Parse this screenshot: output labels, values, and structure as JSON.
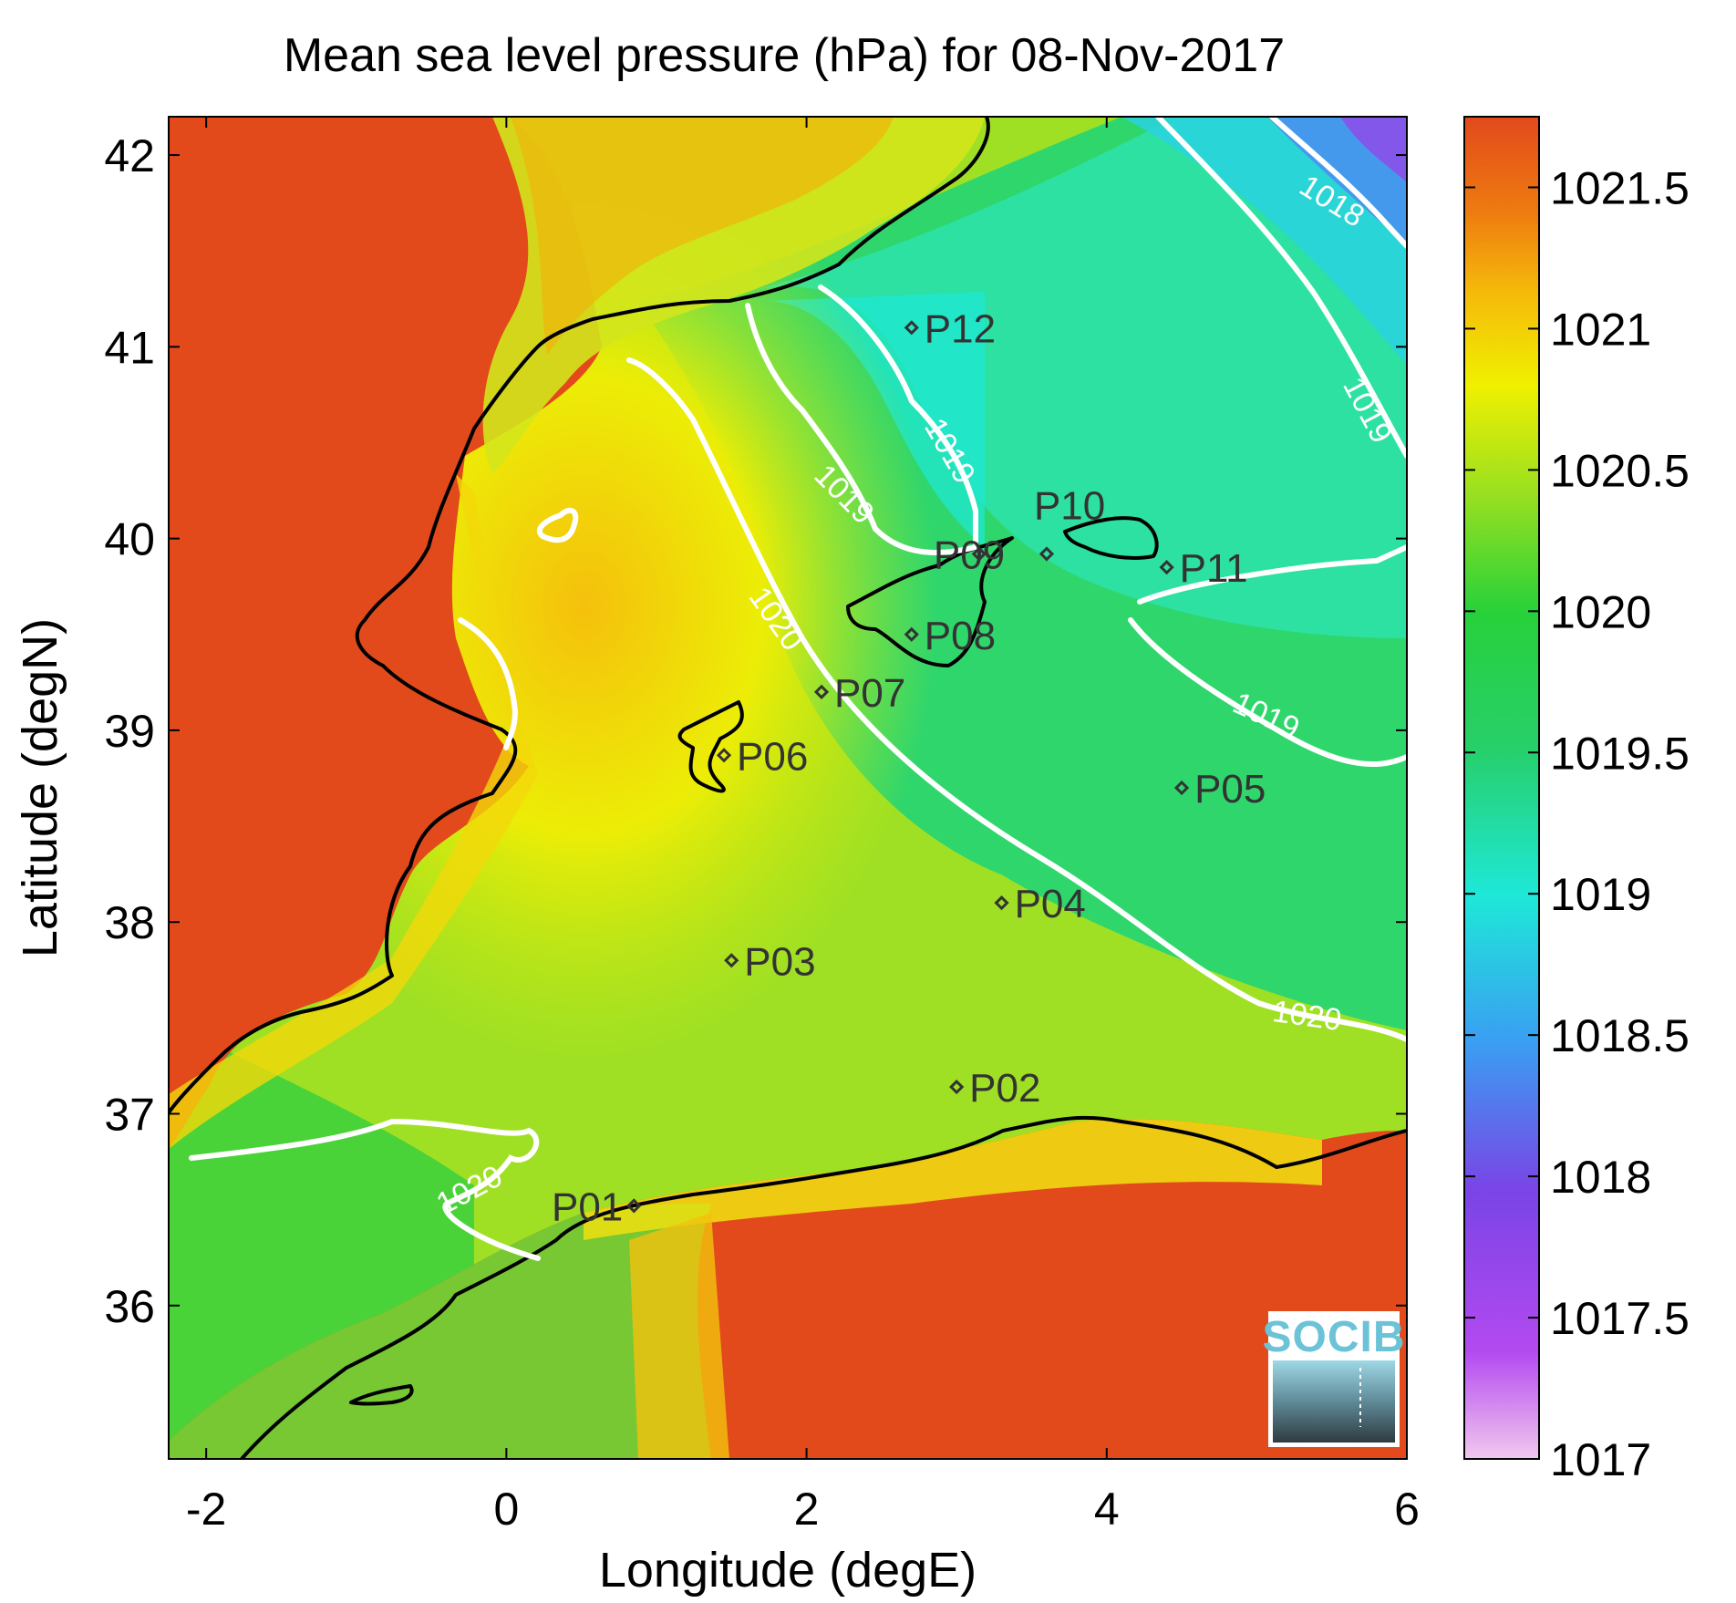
{
  "title": "Mean sea level pressure (hPa) for 08-Nov-2017",
  "x_axis": {
    "label": "Longitude (degE)",
    "range": [
      -2.25,
      6.0
    ],
    "ticks": [
      "-2",
      "0",
      "2",
      "4",
      "6"
    ]
  },
  "y_axis": {
    "label": "Latitude (degN)",
    "range": [
      35.2,
      42.2
    ],
    "ticks": [
      "36",
      "37",
      "38",
      "39",
      "40",
      "41",
      "42"
    ]
  },
  "colorbar": {
    "range": [
      1017,
      1021.75
    ],
    "ticks": [
      "1017",
      "1017.5",
      "1018",
      "1018.5",
      "1019",
      "1019.5",
      "1020",
      "1020.5",
      "1021",
      "1021.5"
    ],
    "colors": [
      "#f2c8ee",
      "#b34af0",
      "#7a44e6",
      "#3a9ef2",
      "#1ee8d8",
      "#27cf6a",
      "#27d13a",
      "#9ae020",
      "#f0f000",
      "#f5b90a",
      "#ee7a10",
      "#e24a1c"
    ]
  },
  "contour_labels": [
    "1018",
    "1019",
    "1019",
    "1019",
    "1019",
    "1020",
    "1020",
    "1020"
  ],
  "stations": [
    {
      "id": "P01",
      "lon": 0.85,
      "lat": 36.52
    },
    {
      "id": "P02",
      "lon": 3.0,
      "lat": 37.14
    },
    {
      "id": "P03",
      "lon": 1.5,
      "lat": 37.8
    },
    {
      "id": "P04",
      "lon": 3.3,
      "lat": 38.1
    },
    {
      "id": "P05",
      "lon": 4.5,
      "lat": 38.7
    },
    {
      "id": "P06",
      "lon": 1.45,
      "lat": 38.87
    },
    {
      "id": "P07",
      "lon": 2.1,
      "lat": 39.2
    },
    {
      "id": "P08",
      "lon": 2.7,
      "lat": 39.5
    },
    {
      "id": "P09",
      "lon": 3.15,
      "lat": 39.92
    },
    {
      "id": "P10",
      "lon": 3.6,
      "lat": 39.92
    },
    {
      "id": "P11",
      "lon": 4.4,
      "lat": 39.85
    },
    {
      "id": "P12",
      "lon": 2.7,
      "lat": 41.1
    }
  ],
  "logo": {
    "text": "SOCIB"
  }
}
